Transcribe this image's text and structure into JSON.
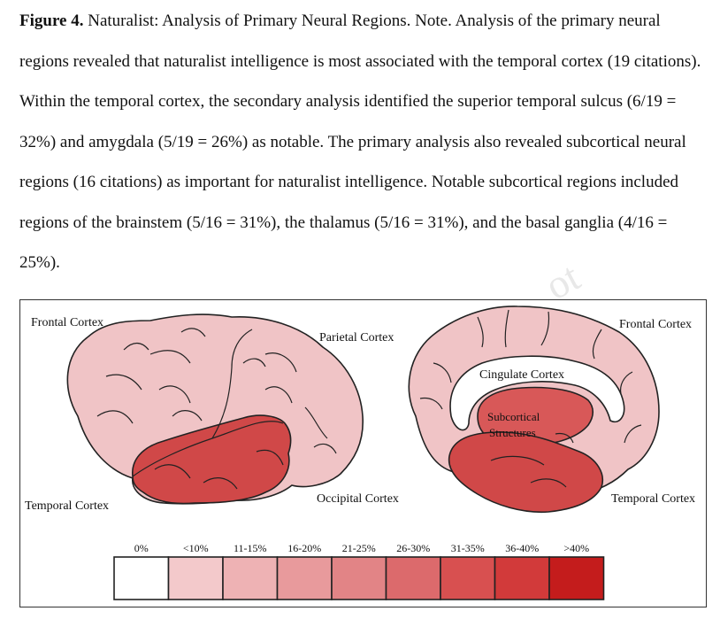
{
  "caption": {
    "figure_label": "Figure 4.",
    "text": "Naturalist: Analysis of Primary Neural Regions. Note. Analysis of the primary neural regions revealed that naturalist intelligence is most associated with the temporal cortex (19 citations). Within the temporal cortex, the secondary analysis identified the superior temporal sulcus (6/19 = 32%) and amygdala (5/19 = 26%) as notable. The primary analysis also revealed subcortical neural regions (16 citations) as important for naturalist intelligence. Notable subcortical regions included regions of the brainstem (5/16 = 31%), the thalamus (5/16 = 31%), and the basal ganglia (4/16 = 25%)."
  },
  "figure": {
    "labels": {
      "frontal_left": "Frontal Cortex",
      "parietal": "Parietal Cortex",
      "temporal_left": "Temporal Cortex",
      "occipital": "Occipital Cortex",
      "frontal_right": "Frontal Cortex",
      "cingulate": "Cingulate Cortex",
      "subcortical_line1": "Subcortical",
      "subcortical_line2": "Structures",
      "temporal_right": "Temporal Cortex"
    },
    "colors": {
      "low_region": "#f0c4c6",
      "temporal": "#d04848",
      "subcortical": "#d85858",
      "outline": "#222222"
    },
    "watermark": "ot"
  },
  "legend": {
    "items": [
      {
        "label": "0%",
        "color": "#ffffff"
      },
      {
        "label": "<10%",
        "color": "#f3c9cb"
      },
      {
        "label": "11-15%",
        "color": "#eeb2b4"
      },
      {
        "label": "16-20%",
        "color": "#e89a9c"
      },
      {
        "label": "21-25%",
        "color": "#e28486"
      },
      {
        "label": "26-30%",
        "color": "#dc6a6c"
      },
      {
        "label": "31-35%",
        "color": "#d85050"
      },
      {
        "label": "36-40%",
        "color": "#d23a3a"
      },
      {
        "label": ">40%",
        "color": "#c41c1c"
      }
    ]
  }
}
